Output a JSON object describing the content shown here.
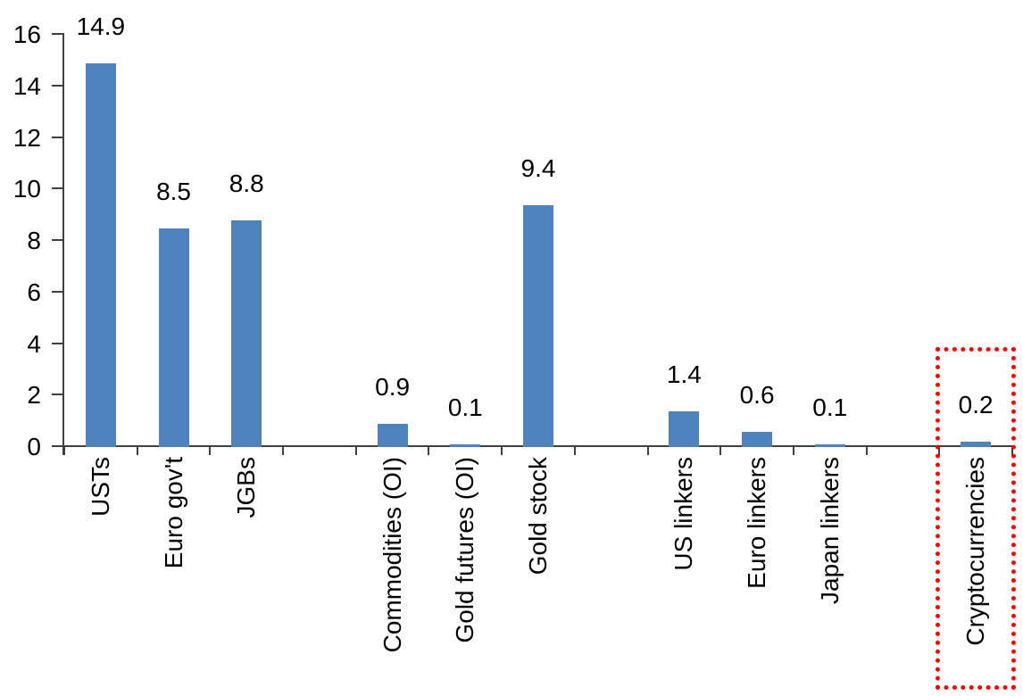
{
  "chart_data": {
    "type": "bar",
    "title": "",
    "xlabel": "",
    "ylabel": "",
    "categories": [
      "USTs",
      "Euro gov't",
      "JGBs",
      "",
      "Commodities (OI)",
      "Gold futures (OI)",
      "Gold stock",
      "",
      "US linkers",
      "Euro linkers",
      "Japan linkers",
      "",
      "Cryptocurrencies"
    ],
    "values": [
      14.9,
      8.5,
      8.8,
      null,
      0.9,
      0.1,
      9.4,
      null,
      1.4,
      0.6,
      0.1,
      null,
      0.2
    ],
    "value_labels": [
      "14.9",
      "8.5",
      "8.8",
      "",
      "0.9",
      "0.1",
      "9.4",
      "",
      "1.4",
      "0.6",
      "0.1",
      "",
      "0.2"
    ],
    "ytick_labels": [
      "0",
      "2",
      "4",
      "6",
      "8",
      "10",
      "12",
      "14",
      "16"
    ],
    "ylim": [
      0,
      16
    ],
    "ytick_step": 2,
    "grid": false,
    "legend": "none",
    "bar_color": "#4E83BD",
    "axis_color": "#404040",
    "text_color": "#000000",
    "annotation": {
      "type": "highlight-box",
      "category": "Cryptocurrencies",
      "border_color": "#FF0000",
      "border_style": "dotted"
    }
  }
}
